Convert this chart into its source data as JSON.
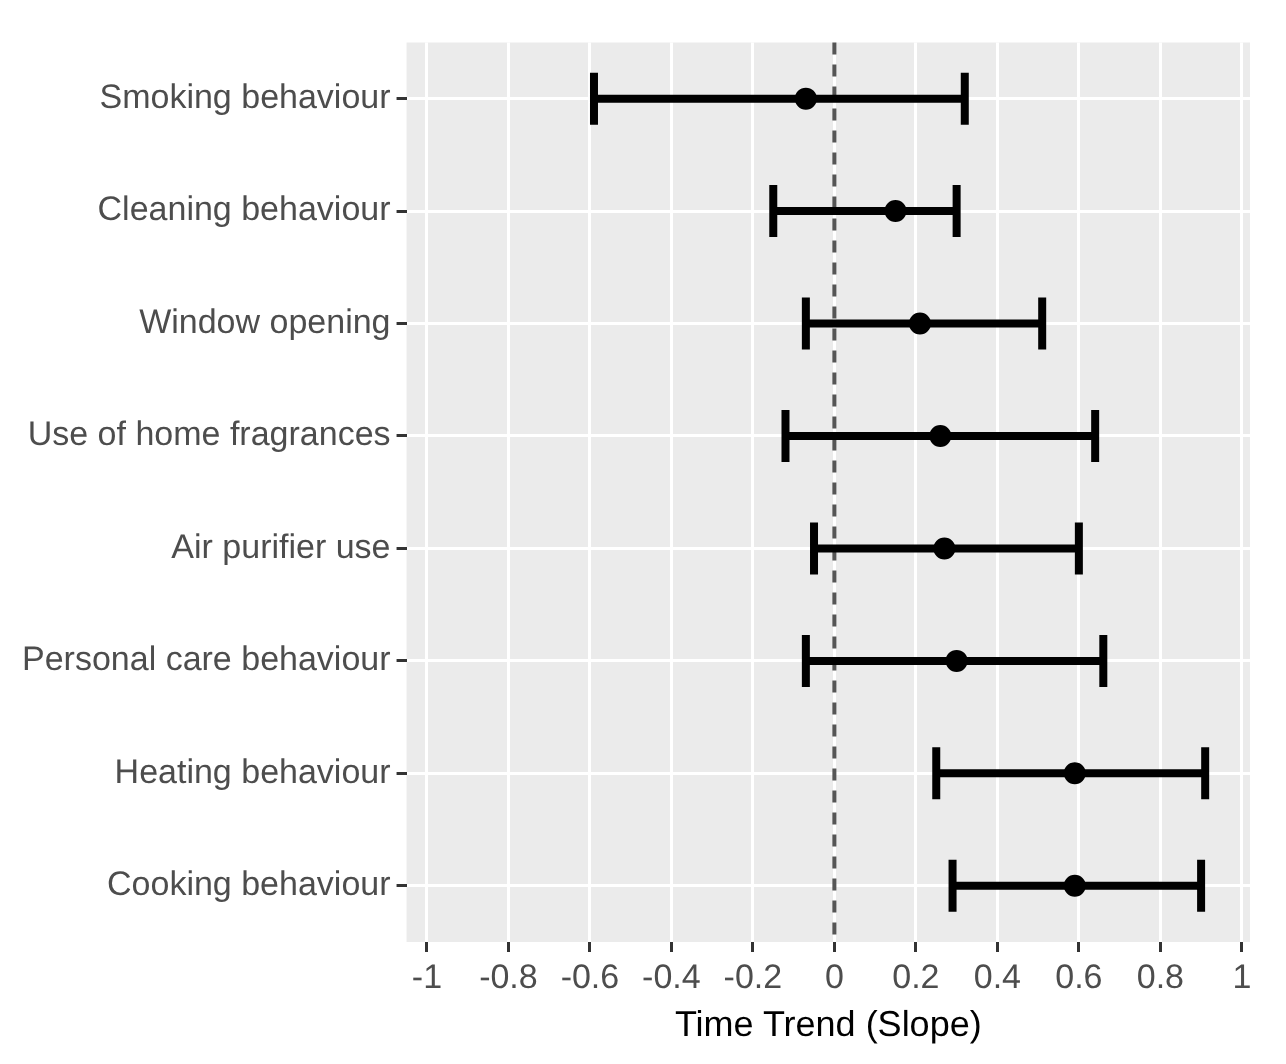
{
  "chart_data": {
    "type": "scatter",
    "orientation": "horizontal",
    "xlabel": "Time Trend (Slope)",
    "categories": [
      "Smoking behaviour",
      "Cleaning behaviour",
      "Window opening",
      "Use of home fragrances",
      "Air purifier use",
      "Personal care behaviour",
      "Heating behaviour",
      "Cooking behaviour"
    ],
    "values": [
      -0.07,
      0.15,
      0.21,
      0.26,
      0.27,
      0.3,
      0.59,
      0.59
    ],
    "errors": [
      [
        -0.59,
        0.32
      ],
      [
        -0.15,
        0.3
      ],
      [
        -0.07,
        0.51
      ],
      [
        -0.12,
        0.64
      ],
      [
        -0.05,
        0.6
      ],
      [
        -0.07,
        0.66
      ],
      [
        0.25,
        0.91
      ],
      [
        0.29,
        0.9
      ]
    ],
    "color": "#000000",
    "marker": "circle",
    "xlim": [
      -1.05,
      1.02
    ],
    "xticks": [
      -1,
      -0.8,
      -0.6,
      -0.4,
      -0.2,
      0,
      0.2,
      0.4,
      0.6,
      0.8,
      1
    ],
    "ref_lines": [
      {
        "axis": "x",
        "value": 0,
        "color": "#555555",
        "line_style": "dashed"
      }
    ],
    "grid": true,
    "legend": false
  }
}
